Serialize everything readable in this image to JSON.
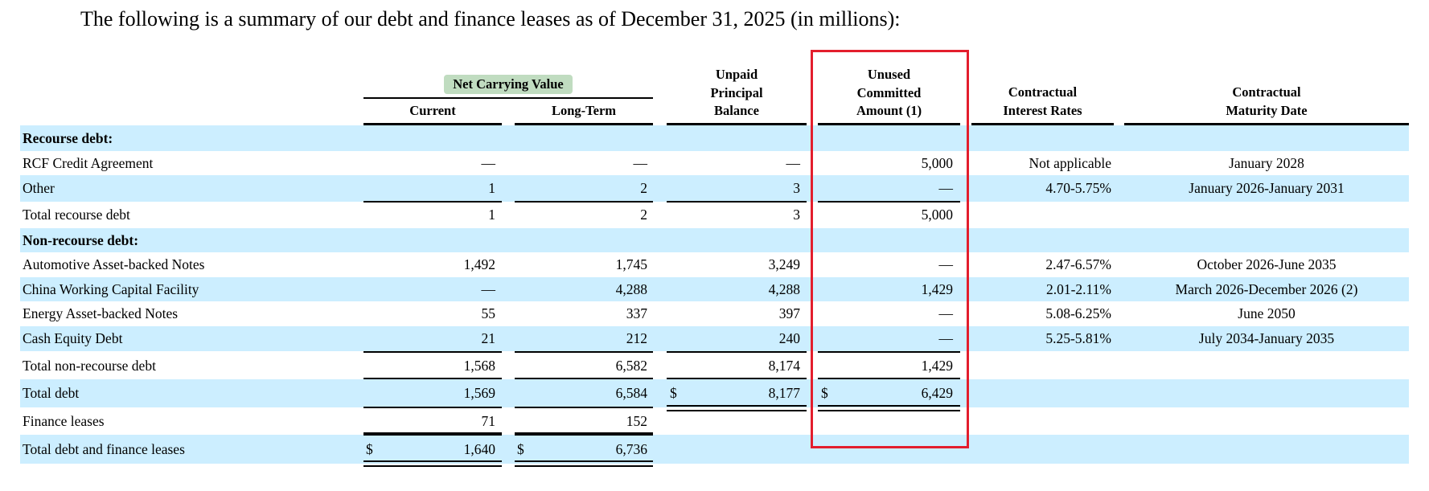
{
  "intro": "The following is a summary of our debt and finance leases as of December 31, 2025 (in millions):",
  "header": {
    "group_label": "Net Carrying Value",
    "columns": {
      "current": "Current",
      "long_term": "Long-Term",
      "unpaid": [
        "Unpaid",
        "Principal",
        "Balance"
      ],
      "unused": [
        "Unused",
        "Committed",
        "Amount (1)"
      ],
      "interest": [
        "Contractual",
        "Interest Rates"
      ],
      "maturity": [
        "Contractual",
        "Maturity Date"
      ]
    }
  },
  "highlight": {
    "column": "Unused Committed Amount (1)",
    "color": "#e31e2d"
  },
  "colors": {
    "band": "#cceeff",
    "group_highlight": "#c0dcc0"
  },
  "rows": [
    {
      "label": "Recourse debt:",
      "bold": true,
      "current": "",
      "long_term": "",
      "unpaid": "",
      "unused": "",
      "interest": "",
      "maturity": ""
    },
    {
      "label": "RCF Credit Agreement",
      "current": "—",
      "long_term": "—",
      "unpaid": "—",
      "unused": "5,000",
      "interest": "Not applicable",
      "maturity": "January 2028"
    },
    {
      "label": "Other",
      "current": "1",
      "long_term": "2",
      "unpaid": "3",
      "unused": "—",
      "interest": "4.70-5.75%",
      "maturity": "January 2026-January 2031"
    },
    {
      "label": "Total recourse debt",
      "current": "1",
      "long_term": "2",
      "unpaid": "3",
      "unused": "5,000",
      "interest": "",
      "maturity": ""
    },
    {
      "label": "Non-recourse debt:",
      "bold": true,
      "current": "",
      "long_term": "",
      "unpaid": "",
      "unused": "",
      "interest": "",
      "maturity": ""
    },
    {
      "label": "Automotive Asset-backed Notes",
      "current": "1,492",
      "long_term": "1,745",
      "unpaid": "3,249",
      "unused": "—",
      "interest": "2.47-6.57%",
      "maturity": "October 2026-June 2035"
    },
    {
      "label": "China Working Capital Facility",
      "current": "—",
      "long_term": "4,288",
      "unpaid": "4,288",
      "unused": "1,429",
      "interest": "2.01-2.11%",
      "maturity": "March 2026-December 2026 (2)"
    },
    {
      "label": "Energy Asset-backed Notes",
      "current": "55",
      "long_term": "337",
      "unpaid": "397",
      "unused": "—",
      "interest": "5.08-6.25%",
      "maturity": "June 2050"
    },
    {
      "label": "Cash Equity Debt",
      "current": "21",
      "long_term": "212",
      "unpaid": "240",
      "unused": "—",
      "interest": "5.25-5.81%",
      "maturity": "July 2034-January 2035"
    },
    {
      "label": "Total non-recourse debt",
      "current": "1,568",
      "long_term": "6,582",
      "unpaid": "8,174",
      "unused": "1,429",
      "interest": "",
      "maturity": ""
    },
    {
      "label": "Total debt",
      "current": "1,569",
      "long_term": "6,584",
      "unpaid": "8,177",
      "unpaid_dollar": "$",
      "unused": "6,429",
      "unused_dollar": "$",
      "interest": "",
      "maturity": ""
    },
    {
      "label": "Finance leases",
      "current": "71",
      "long_term": "152",
      "unpaid": "",
      "unused": "",
      "interest": "",
      "maturity": ""
    },
    {
      "label": "Total debt and finance leases",
      "current": "1,640",
      "current_dollar": "$",
      "long_term": "6,736",
      "long_term_dollar": "$",
      "unpaid": "",
      "unused": "",
      "interest": "",
      "maturity": ""
    }
  ]
}
